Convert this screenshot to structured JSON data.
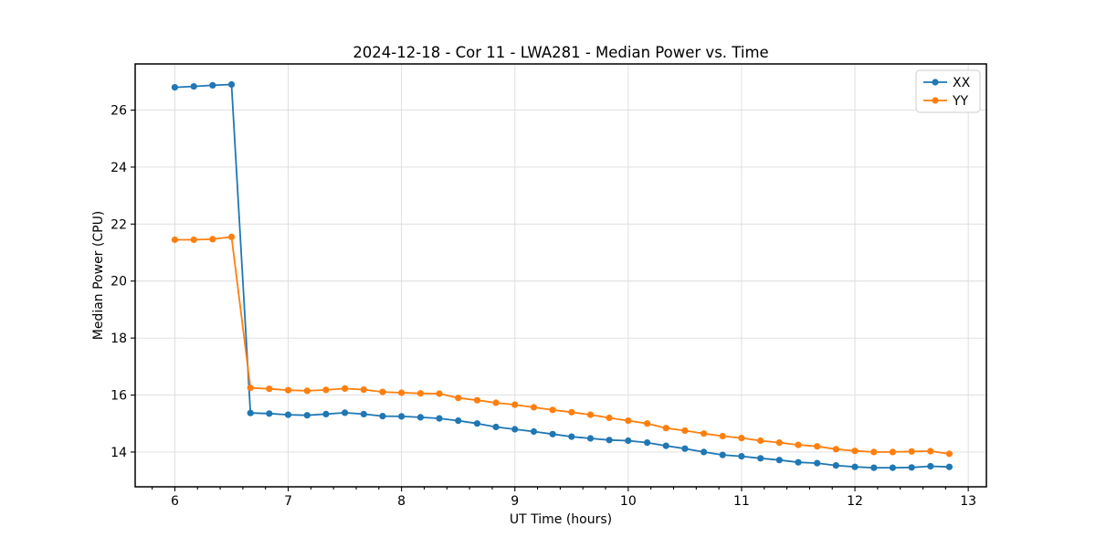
{
  "figure": {
    "title": "2024-12-18 - Cor 11 - LWA281 - Median Power vs. Time",
    "background_color": "#ffffff"
  },
  "chart_data": {
    "type": "line",
    "title": "2024-12-18 - Cor 11 - LWA281 - Median Power vs. Time",
    "xlabel": "UT Time (hours)",
    "ylabel": "Median Power (CPU)",
    "xlim": [
      5.65,
      13.16
    ],
    "ylim": [
      12.78,
      27.62
    ],
    "x_major_ticks": [
      6,
      7,
      8,
      9,
      10,
      11,
      12,
      13
    ],
    "x_minor_tick_step": 0.2,
    "y_major_ticks": [
      14,
      16,
      18,
      20,
      22,
      24,
      26
    ],
    "grid": true,
    "grid_color": "#dcdcdc",
    "legend_position": "upper right",
    "marker": "circle",
    "x": [
      6.0,
      6.167,
      6.333,
      6.5,
      6.667,
      6.833,
      7.0,
      7.167,
      7.333,
      7.5,
      7.667,
      7.833,
      8.0,
      8.167,
      8.333,
      8.5,
      8.667,
      8.833,
      9.0,
      9.167,
      9.333,
      9.5,
      9.667,
      9.833,
      10.0,
      10.167,
      10.333,
      10.5,
      10.667,
      10.833,
      11.0,
      11.167,
      11.333,
      11.5,
      11.667,
      11.833,
      12.0,
      12.167,
      12.333,
      12.5,
      12.667,
      12.833
    ],
    "series": [
      {
        "name": "XX",
        "color": "#1f77b4",
        "values": [
          26.8,
          26.83,
          26.87,
          26.9,
          15.37,
          15.35,
          15.31,
          15.29,
          15.33,
          15.38,
          15.33,
          15.26,
          15.25,
          15.22,
          15.18,
          15.1,
          15.0,
          14.88,
          14.8,
          14.72,
          14.63,
          14.54,
          14.48,
          14.42,
          14.4,
          14.33,
          14.22,
          14.12,
          14.0,
          13.9,
          13.85,
          13.78,
          13.72,
          13.64,
          13.61,
          13.53,
          13.48,
          13.45,
          13.45,
          13.46,
          13.5,
          13.48
        ]
      },
      {
        "name": "YY",
        "color": "#ff7f0e",
        "values": [
          21.45,
          21.45,
          21.47,
          21.55,
          16.25,
          16.22,
          16.17,
          16.15,
          16.18,
          16.23,
          16.19,
          16.11,
          16.08,
          16.06,
          16.05,
          15.9,
          15.82,
          15.73,
          15.66,
          15.57,
          15.48,
          15.4,
          15.31,
          15.2,
          15.1,
          15.0,
          14.84,
          14.75,
          14.65,
          14.56,
          14.49,
          14.4,
          14.33,
          14.25,
          14.2,
          14.1,
          14.04,
          14.0,
          14.0,
          14.02,
          14.03,
          13.94
        ]
      }
    ]
  }
}
